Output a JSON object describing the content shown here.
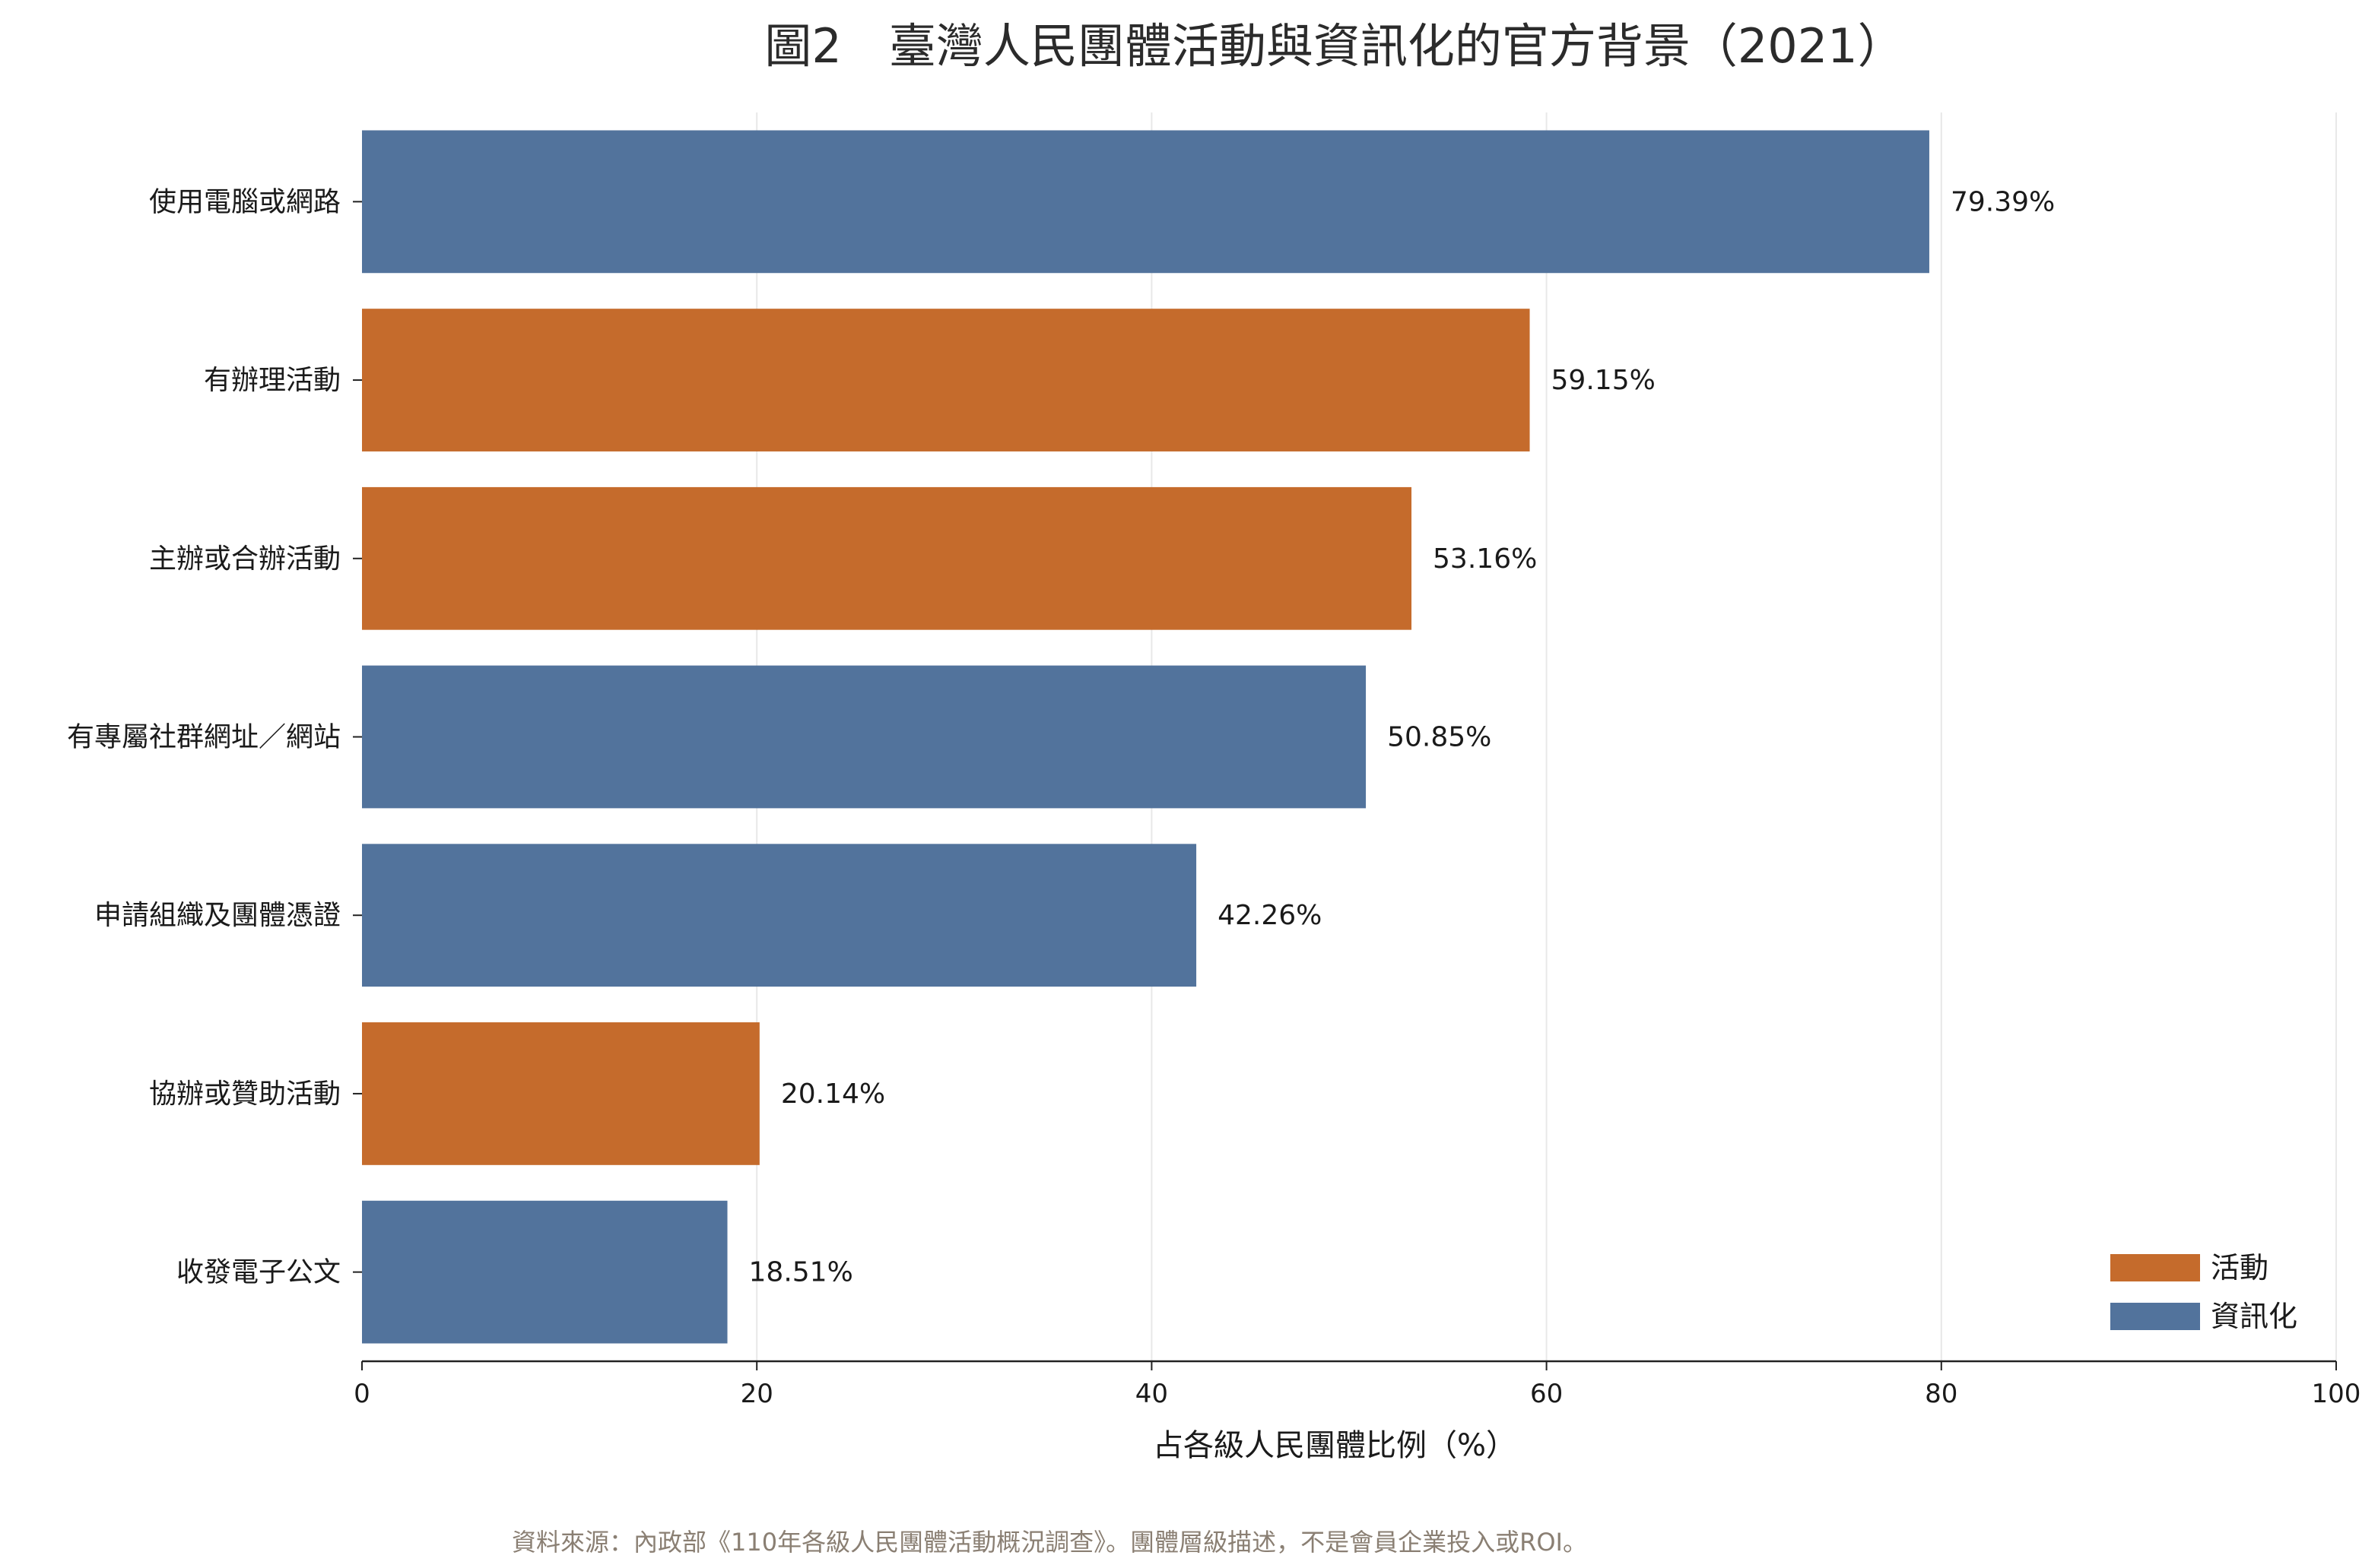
{
  "chart_data": {
    "type": "bar",
    "orientation": "horizontal",
    "title": "圖2　臺灣人民團體活動與資訊化的官方背景（2021）",
    "xlabel": "占各級人民團體比例（%）",
    "ylabel": "",
    "xlim": [
      0,
      100
    ],
    "xticks": [
      "0",
      "20",
      "40",
      "60",
      "80",
      "100"
    ],
    "grid": "vertical",
    "legend_position": "bottom-right",
    "categories": [
      "使用電腦或網路",
      "有辦理活動",
      "主辦或合辦活動",
      "有專屬社群網址／網站",
      "申請組織及團體憑證",
      "協辦或贊助活動",
      "收發電子公文"
    ],
    "values": [
      79.39,
      59.15,
      53.16,
      50.85,
      42.26,
      20.14,
      18.51
    ],
    "value_labels": [
      "79.39%",
      "59.15%",
      "53.16%",
      "50.85%",
      "42.26%",
      "20.14%",
      "18.51%"
    ],
    "groups": [
      "資訊化",
      "活動",
      "活動",
      "資訊化",
      "資訊化",
      "活動",
      "資訊化"
    ],
    "legend": [
      {
        "name": "活動",
        "color": "#c56b2c"
      },
      {
        "name": "資訊化",
        "color": "#52739c"
      }
    ],
    "source": "資料來源：內政部《110年各級人民團體活動概況調查》。團體層級描述，不是會員企業投入或ROI。"
  }
}
